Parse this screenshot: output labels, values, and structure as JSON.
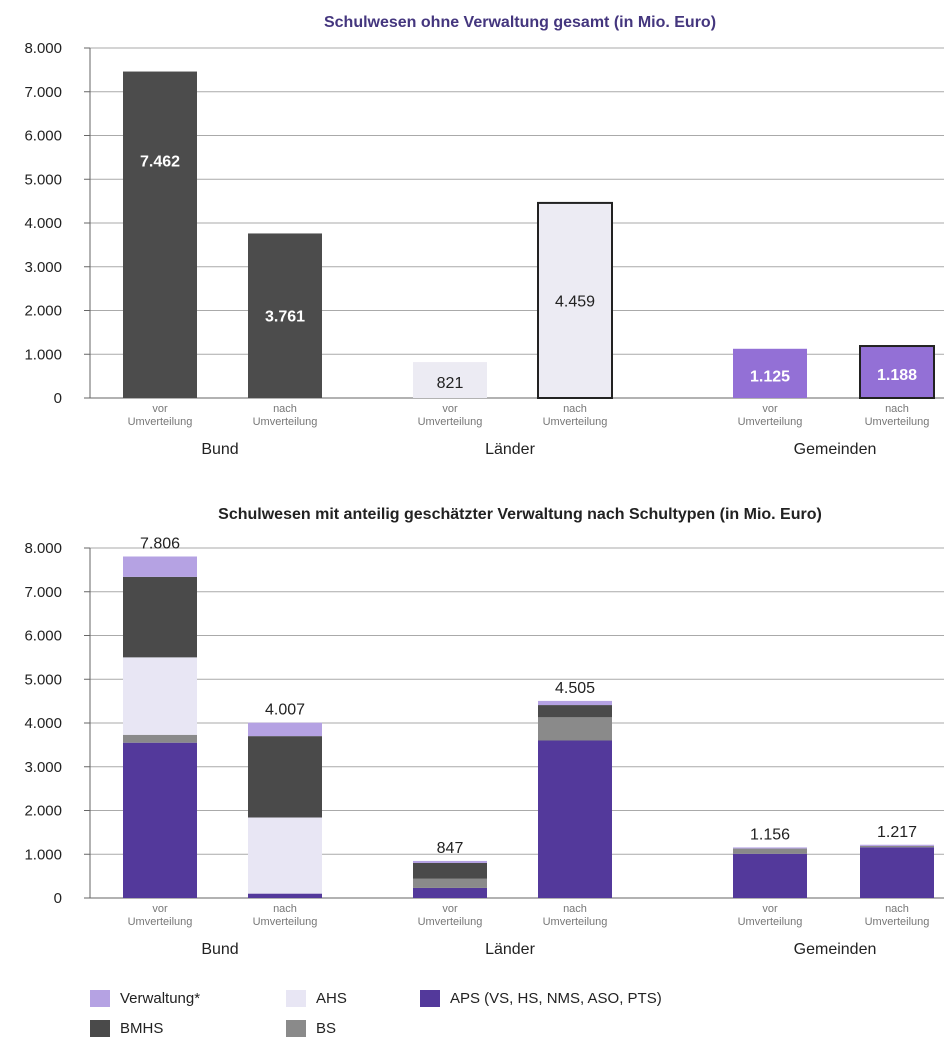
{
  "colors": {
    "dark": "#4c4c4c",
    "light": "#ecebf3",
    "purple": "#9370d6",
    "apsPurple": "#53399b",
    "verwaltung": "#b5a2e3",
    "ahs": "#e8e6f4",
    "bmhs": "#4a4a4a",
    "bs": "#8a8a8a",
    "titleText": "#44367e"
  },
  "chart_data": [
    {
      "type": "bar",
      "title": "Schulwesen ohne Verwaltung gesamt (in Mio. Euro)",
      "yticks": [
        "0",
        "1.000",
        "2.000",
        "3.000",
        "4.000",
        "5.000",
        "6.000",
        "7.000",
        "8.000"
      ],
      "ylim": [
        0,
        8000
      ],
      "grid": true,
      "groups": [
        {
          "name": "Bund",
          "bars": [
            {
              "sublabel1": "vor",
              "sublabel2": "Umverteilung",
              "value": 7462,
              "label": "7.462",
              "style": "dark"
            },
            {
              "sublabel1": "nach",
              "sublabel2": "Umverteilung",
              "value": 3761,
              "label": "3.761",
              "style": "dark"
            }
          ]
        },
        {
          "name": "Länder",
          "bars": [
            {
              "sublabel1": "vor",
              "sublabel2": "Umverteilung",
              "value": 821,
              "label": "821",
              "style": "light"
            },
            {
              "sublabel1": "nach",
              "sublabel2": "Umverteilung",
              "value": 4459,
              "label": "4.459",
              "style": "light-outline"
            }
          ]
        },
        {
          "name": "Gemeinden",
          "bars": [
            {
              "sublabel1": "vor",
              "sublabel2": "Umverteilung",
              "value": 1125,
              "label": "1.125",
              "style": "purple"
            },
            {
              "sublabel1": "nach",
              "sublabel2": "Umverteilung",
              "value": 1188,
              "label": "1.188",
              "style": "purple-outline"
            }
          ]
        }
      ]
    },
    {
      "type": "bar",
      "stacked": true,
      "title": "Schulwesen mit anteilig geschätzter Verwaltung nach Schultypen (in Mio. Euro)",
      "yticks": [
        "0",
        "1.000",
        "2.000",
        "3.000",
        "4.000",
        "5.000",
        "6.000",
        "7.000",
        "8.000"
      ],
      "ylim": [
        0,
        8000
      ],
      "grid": true,
      "series": [
        {
          "name": "APS (VS, HS, NMS, ASO, PTS)",
          "key": "aps"
        },
        {
          "name": "BS",
          "key": "bs"
        },
        {
          "name": "AHS",
          "key": "ahs"
        },
        {
          "name": "BMHS",
          "key": "bmhs"
        },
        {
          "name": "Verwaltung*",
          "key": "verwaltung"
        }
      ],
      "groups": [
        {
          "name": "Bund",
          "bars": [
            {
              "sublabel1": "vor",
              "sublabel2": "Umverteilung",
              "total": "7.806",
              "segments": {
                "aps": 3550,
                "bs": 180,
                "ahs": 1770,
                "bmhs": 1840,
                "verwaltung": 466
              }
            },
            {
              "sublabel1": "nach",
              "sublabel2": "Umverteilung",
              "total": "4.007",
              "segments": {
                "aps": 100,
                "bs": 0,
                "ahs": 1740,
                "bmhs": 1860,
                "verwaltung": 307
              }
            }
          ]
        },
        {
          "name": "Länder",
          "bars": [
            {
              "sublabel1": "vor",
              "sublabel2": "Umverteilung",
              "total": "847",
              "segments": {
                "aps": 230,
                "bs": 210,
                "ahs": 0,
                "bmhs": 360,
                "verwaltung": 47
              }
            },
            {
              "sublabel1": "nach",
              "sublabel2": "Umverteilung",
              "total": "4.505",
              "segments": {
                "aps": 3600,
                "bs": 530,
                "ahs": 0,
                "bmhs": 280,
                "verwaltung": 95
              }
            }
          ]
        },
        {
          "name": "Gemeinden",
          "bars": [
            {
              "sublabel1": "vor",
              "sublabel2": "Umverteilung",
              "total": "1.156",
              "segments": {
                "aps": 1010,
                "bs": 120,
                "ahs": 0,
                "bmhs": 0,
                "verwaltung": 26
              }
            },
            {
              "sublabel1": "nach",
              "sublabel2": "Umverteilung",
              "total": "1.217",
              "segments": {
                "aps": 1160,
                "bs": 30,
                "ahs": 0,
                "bmhs": 0,
                "verwaltung": 27
              }
            }
          ]
        }
      ]
    }
  ],
  "legend": [
    {
      "label": "Verwaltung*",
      "key": "verwaltung"
    },
    {
      "label": "AHS",
      "key": "ahs"
    },
    {
      "label": "APS (VS, HS, NMS, ASO, PTS)",
      "key": "apsPurple"
    },
    {
      "label": "BMHS",
      "key": "bmhs"
    },
    {
      "label": "BS",
      "key": "bs"
    }
  ]
}
